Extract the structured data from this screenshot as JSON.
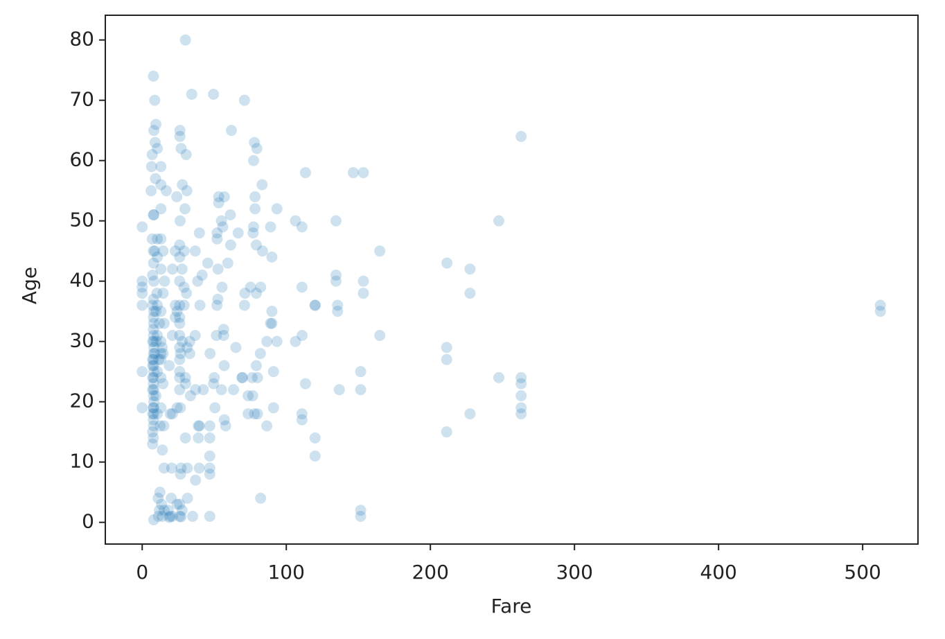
{
  "chart_data": {
    "type": "scatter",
    "x_label": "Fare",
    "y_label": "Age",
    "color": "#1f77b4",
    "alpha": 0.22,
    "xlim": [
      -25.6,
      538.4
    ],
    "ylim": [
      -3.6,
      84.1
    ],
    "xticks": [
      0,
      100,
      200,
      300,
      400,
      500
    ],
    "yticks": [
      0,
      10,
      20,
      30,
      40,
      50,
      60,
      70,
      80
    ],
    "x": [
      512.3,
      512.3,
      263,
      263,
      263,
      263,
      263,
      263,
      247.5,
      247.5,
      227.5,
      227.5,
      227.5,
      211.5,
      211.3,
      211.3,
      211.3,
      164.9,
      164.9,
      153.5,
      146.5,
      153.5,
      153.5,
      151.6,
      151.6,
      151.6,
      151.6,
      134.5,
      134.5,
      134.5,
      135.6,
      135.6,
      136.8,
      120,
      120,
      120,
      120,
      113.3,
      113.3,
      110.9,
      110.9,
      106.4,
      106.4,
      111,
      110.9,
      110.9,
      93.5,
      93.5,
      90,
      90,
      91.1,
      91.1,
      90,
      89.1,
      89.1,
      86.5,
      86.5,
      83.2,
      83.5,
      82.2,
      82.2,
      82,
      79.6,
      79.2,
      78.3,
      78.3,
      77.9,
      77.3,
      76.7,
      76.3,
      77.9,
      80,
      80,
      79.2,
      79.2,
      77.3,
      77,
      75.2,
      73.5,
      73.5,
      71,
      71,
      71.3,
      69.5,
      69.3,
      66.6,
      65,
      63.4,
      61.9,
      61.4,
      61.2,
      59.4,
      57,
      57,
      57.9,
      56.5,
      56.5,
      56.9,
      55.9,
      55.4,
      55,
      55,
      53.1,
      53.1,
      52.6,
      52.5,
      52,
      52,
      51.9,
      51.5,
      50.5,
      50,
      49.5,
      49.5,
      47.1,
      46.9,
      46.9,
      46.9,
      46.9,
      46.9,
      46.9,
      45.5,
      42.4,
      41.6,
      40.1,
      39.7,
      39.7,
      39,
      39.6,
      39,
      38.5,
      37,
      37,
      36.8,
      36.8,
      35,
      34.4,
      33.5,
      33,
      33,
      31.4,
      31.3,
      31.3,
      31,
      30.7,
      30.5,
      30.1,
      30,
      30,
      29.7,
      29.1,
      29.1,
      29,
      27.9,
      27.7,
      27.7,
      27,
      27,
      26.5,
      26.3,
      26.2,
      26.2,
      26,
      26,
      26,
      26,
      26,
      26,
      26,
      26,
      26,
      26,
      26,
      26,
      26.6,
      24.2,
      24.2,
      24,
      23,
      23,
      21,
      21,
      21,
      20.5,
      20.2,
      19.5,
      19.3,
      18.8,
      18,
      16.7,
      15.5,
      15.2,
      15.2,
      15,
      14.5,
      14.5,
      14.5,
      14.4,
      13.9,
      13.4,
      13,
      13,
      13,
      13,
      13,
      13,
      13,
      13,
      13,
      13,
      12.5,
      12.3,
      11.2,
      11.1,
      10.5,
      10.5,
      10.5,
      10.5,
      10.5,
      10.5,
      10.5,
      9.5,
      9.5,
      9.5,
      9.2,
      9,
      8.7,
      8.7,
      8.7,
      8.1,
      8.05,
      8.05,
      8.05,
      8.05,
      8.05,
      8.05,
      8.05,
      8.05,
      7.9,
      7.9,
      7.9,
      7.9,
      7.8,
      7.8,
      7.8,
      7.8,
      7.75,
      7.75,
      7.75,
      7.75,
      7.25,
      7.25,
      7.25,
      7.25,
      7.25,
      7.25,
      7.25,
      7.23,
      7.23,
      7,
      6.95,
      6.5,
      6.2,
      0,
      0,
      0,
      0,
      0,
      0,
      0,
      8,
      14,
      27,
      18.8,
      12,
      9.8,
      10.2,
      11.5,
      12,
      14,
      7.9,
      8.05,
      7.75,
      7.9,
      7.8,
      8.05,
      7.25,
      7.9,
      7.75,
      8.05,
      13,
      15.2,
      26,
      26,
      27.7,
      24.2,
      21,
      23,
      26.6,
      30
    ],
    "values": [
      35,
      36,
      64,
      24,
      23,
      19,
      18,
      21,
      50,
      24,
      42,
      38,
      18,
      43,
      29,
      27,
      15,
      45,
      31,
      58,
      58,
      40,
      38,
      25,
      22,
      2,
      1,
      50,
      41,
      40,
      36,
      35,
      22,
      36,
      36,
      14,
      11,
      58,
      23,
      39,
      49,
      50,
      30,
      31,
      18,
      17,
      52,
      30,
      35,
      33,
      25,
      19,
      44,
      49,
      33,
      16,
      30,
      56,
      45,
      4,
      39,
      28,
      62,
      46,
      52,
      54,
      63,
      60,
      21,
      24,
      18,
      18,
      24,
      26,
      38,
      49,
      48,
      39,
      21,
      18,
      36,
      70,
      38,
      24,
      24,
      48,
      29,
      22,
      65,
      46,
      51,
      43,
      54,
      17,
      16,
      32,
      31,
      26,
      49,
      39,
      22,
      50,
      54,
      53,
      42,
      37,
      47,
      48,
      36,
      31,
      19,
      24,
      71,
      23,
      28,
      8,
      9,
      11,
      1,
      14,
      16,
      43,
      22,
      41,
      36,
      48,
      16,
      16,
      9,
      14,
      40,
      22,
      7,
      31,
      45,
      1,
      71,
      21,
      28,
      30,
      4,
      9,
      29,
      55,
      38,
      61,
      23,
      80,
      14,
      52,
      45,
      36,
      39,
      56,
      42,
      2,
      62,
      9,
      19,
      50,
      65,
      64,
      34,
      27,
      24,
      46,
      44,
      40,
      36,
      31,
      29,
      25,
      3,
      1,
      8,
      19,
      3,
      54,
      45,
      34,
      1,
      31,
      18,
      9,
      4,
      18,
      1,
      26,
      2,
      55,
      40,
      9,
      2,
      16,
      38,
      45,
      28,
      23,
      29,
      3,
      59,
      56,
      52,
      47,
      42,
      35,
      30,
      27,
      24,
      19,
      16,
      5,
      1,
      4,
      62,
      44,
      36,
      31,
      25,
      18,
      47,
      66,
      35,
      21,
      57,
      63,
      70,
      45,
      28,
      65,
      51,
      40,
      33,
      29,
      26,
      22,
      20,
      35,
      16,
      43,
      24,
      31,
      74,
      51,
      37,
      27,
      17,
      32,
      19,
      14,
      22,
      26,
      36,
      30,
      18,
      24,
      41,
      15,
      13,
      47,
      61,
      59,
      55,
      49,
      40,
      39,
      38,
      36,
      25,
      19,
      0.42,
      1,
      0.92,
      0.83,
      2,
      30,
      38,
      27,
      33,
      12,
      28,
      25,
      23,
      21,
      34,
      30,
      27,
      19,
      45,
      18,
      28,
      33,
      22,
      33,
      30,
      35,
      42,
      36,
      28,
      24
    ]
  }
}
